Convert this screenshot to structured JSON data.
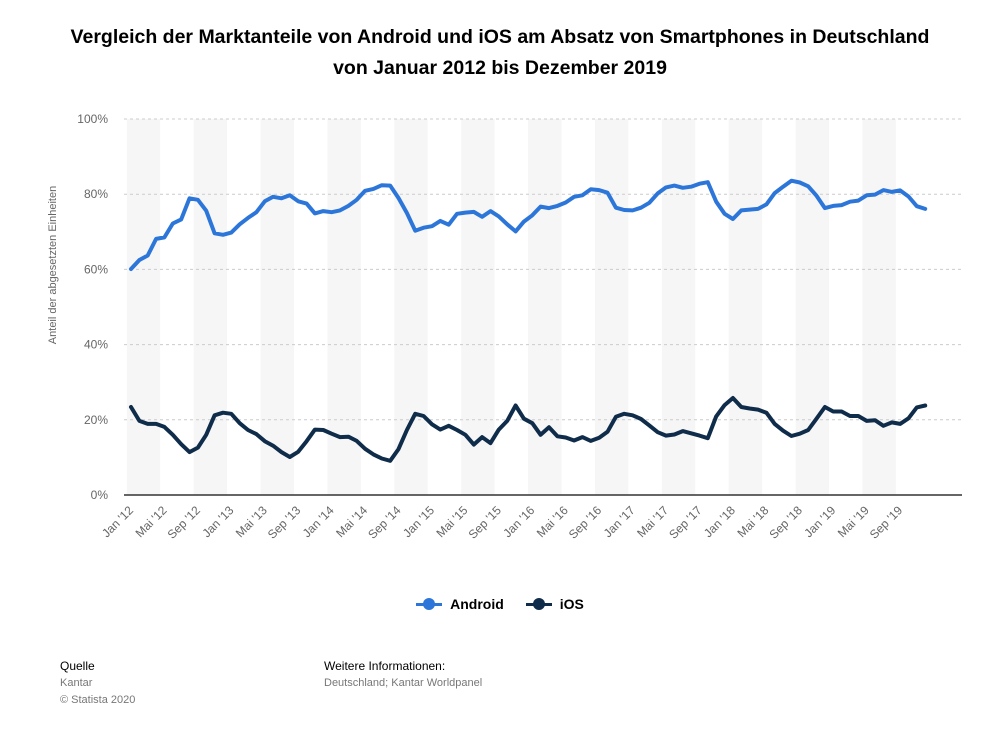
{
  "chart_data": {
    "type": "line",
    "title": "Vergleich der Marktanteile von Android und iOS am Absatz von Smartphones in Deutschland von Januar 2012 bis Dezember 2019",
    "ylabel": "Anteil der abgesetzten Einheiten",
    "xlabel": "",
    "ylim": [
      0,
      100
    ],
    "yticks": [
      "0%",
      "20%",
      "40%",
      "60%",
      "80%",
      "100%"
    ],
    "xtick_labels": [
      "Jan '12",
      "Mai '12",
      "Sep '12",
      "Jan '13",
      "Mai '13",
      "Sep '13",
      "Jan '14",
      "Mai '14",
      "Sep '14",
      "Jan '15",
      "Mai '15",
      "Sep '15",
      "Jan '16",
      "Mai '16",
      "Sep '16",
      "Jan '17",
      "Mai '17",
      "Sep '17",
      "Jan '18",
      "Mai '18",
      "Sep '18",
      "Jan '19",
      "Mai '19",
      "Sep '19"
    ],
    "x_start": "Jan 2012",
    "x_end": "Dec 2019",
    "grid": true,
    "legend_position": "bottom",
    "series": [
      {
        "name": "Android",
        "color": "#2d76d9",
        "values": [
          60.1,
          62.5,
          63.7,
          68.1,
          68.5,
          72.2,
          73.3,
          78.9,
          78.5,
          75.6,
          69.6,
          69.2,
          69.8,
          72,
          73.7,
          75.2,
          78.1,
          79.3,
          78.9,
          79.7,
          78.1,
          77.5,
          74.9,
          75.5,
          75.2,
          75.7,
          76.9,
          78.5,
          80.9,
          81.4,
          82.4,
          82.3,
          79,
          75,
          70.3,
          71.1,
          71.5,
          72.9,
          71.9,
          74.8,
          75.1,
          75.3,
          74,
          75.5,
          74.1,
          72,
          70.1,
          72.7,
          74.4,
          76.7,
          76.3,
          76.9,
          77.8,
          79.3,
          79.7,
          81.3,
          81.1,
          80.4,
          76.4,
          75.8,
          75.7,
          76.4,
          77.7,
          80.2,
          81.8,
          82.3,
          81.7,
          82,
          82.8,
          83.2,
          78,
          74.8,
          73.4,
          75.7,
          75.9,
          76.1,
          77.3,
          80.3,
          82,
          83.6,
          83.1,
          82.1,
          79.6,
          76.3,
          76.9,
          77.1,
          78,
          78.3,
          79.7,
          79.9,
          81.1,
          80.6,
          81,
          79.4,
          76.8,
          76.1
        ]
      },
      {
        "name": "iOS",
        "color": "#0f2c4a",
        "values": [
          23.4,
          19.7,
          18.9,
          18.9,
          18.1,
          16,
          13.5,
          11.4,
          12.6,
          16,
          21.2,
          21.9,
          21.6,
          19.1,
          17.3,
          16.2,
          14.3,
          13.1,
          11.4,
          10.1,
          11.5,
          14.3,
          17.4,
          17.3,
          16.3,
          15.4,
          15.5,
          14.4,
          12.3,
          10.8,
          9.7,
          9.1,
          12.2,
          17.3,
          21.6,
          21,
          18.8,
          17.4,
          18.4,
          17.3,
          16,
          13.4,
          15.4,
          13.8,
          17.4,
          19.7,
          23.8,
          20.3,
          19.1,
          16,
          18,
          15.6,
          15.3,
          14.5,
          15.4,
          14.4,
          15.2,
          16.8,
          20.8,
          21.6,
          21.2,
          20.2,
          18.5,
          16.7,
          15.8,
          16.1,
          17,
          16.4,
          15.8,
          15.1,
          20.9,
          23.9,
          25.8,
          23.4,
          23,
          22.7,
          21.9,
          18.9,
          17.1,
          15.7,
          16.3,
          17.3,
          20.3,
          23.4,
          22.2,
          22.2,
          21,
          21,
          19.7,
          19.9,
          18.4,
          19.3,
          18.9,
          20.4,
          23.3,
          23.8
        ]
      }
    ]
  },
  "source": {
    "heading": "Quelle",
    "line1": "Kantar",
    "line2": "© Statista 2020"
  },
  "info": {
    "heading": "Weitere Informationen:",
    "line1": "Deutschland; Kantar Worldpanel"
  }
}
